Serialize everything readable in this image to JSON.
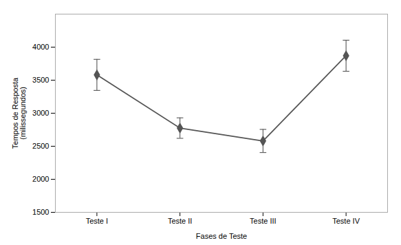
{
  "chart_data": {
    "type": "line",
    "x": [
      1,
      2,
      3,
      4
    ],
    "values": [
      3580,
      2775,
      2580,
      3870
    ],
    "errors": [
      235,
      155,
      175,
      235
    ],
    "xlim": [
      0.5,
      4.5
    ],
    "xticks": [
      {
        "value": 1,
        "label": "Teste I"
      },
      {
        "value": 2,
        "label": "Teste II"
      },
      {
        "value": 3,
        "label": "Teste III"
      },
      {
        "value": 4,
        "label": "Teste IV"
      }
    ],
    "ylim": [
      1500,
      4500
    ],
    "yticks": [
      1500,
      2000,
      2500,
      3000,
      3500,
      4000
    ],
    "xlabel": "Fases de Teste",
    "ylabel": "Tempos de Resposta\n(milissegundos)",
    "color": "#555555",
    "marker": "diamond",
    "line_style": "solid",
    "grid": false
  }
}
